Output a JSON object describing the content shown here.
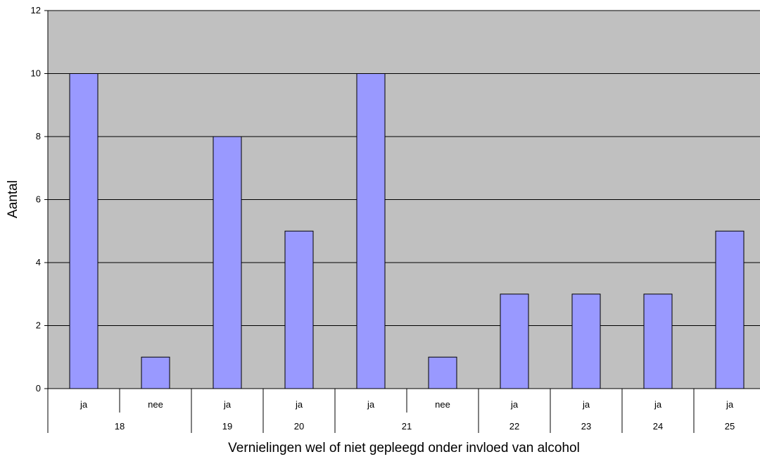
{
  "chart_data": {
    "type": "bar",
    "title": "",
    "xlabel": "Vernielingen wel of niet gepleegd onder invloed van alcohol",
    "ylabel": "Aantal",
    "ylim": [
      0,
      12
    ],
    "yticks": [
      "0",
      "2",
      "4",
      "6",
      "8",
      "10",
      "12"
    ],
    "grid": true,
    "legend": "none",
    "colors": {
      "bar": "#9999ff",
      "plot_bg": "#c0c0c0"
    },
    "categories": [
      "ja",
      "nee",
      "ja",
      "ja",
      "ja",
      "nee",
      "ja",
      "ja",
      "ja",
      "ja"
    ],
    "groups": [
      {
        "label": "18",
        "count": 2
      },
      {
        "label": "19",
        "count": 1
      },
      {
        "label": "20",
        "count": 1
      },
      {
        "label": "21",
        "count": 2
      },
      {
        "label": "22",
        "count": 1
      },
      {
        "label": "23",
        "count": 1
      },
      {
        "label": "24",
        "count": 1
      },
      {
        "label": "25",
        "count": 1
      }
    ],
    "values": [
      10,
      1,
      8,
      5,
      10,
      1,
      3,
      3,
      3,
      5
    ]
  }
}
